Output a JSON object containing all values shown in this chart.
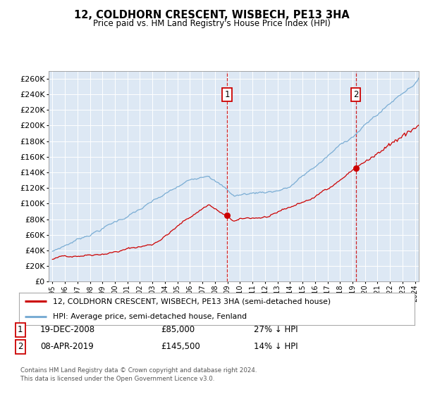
{
  "title": "12, COLDHORN CRESCENT, WISBECH, PE13 3HA",
  "subtitle": "Price paid vs. HM Land Registry's House Price Index (HPI)",
  "property_label": "12, COLDHORN CRESCENT, WISBECH, PE13 3HA (semi-detached house)",
  "hpi_label": "HPI: Average price, semi-detached house, Fenland",
  "property_color": "#cc0000",
  "hpi_color": "#7aadd4",
  "background_color": "#dde8f4",
  "annotation1": {
    "num": "1",
    "date": "19-DEC-2008",
    "price": "£85,000",
    "pct": "27% ↓ HPI",
    "x_year": 2008.97
  },
  "annotation2": {
    "num": "2",
    "date": "08-APR-2019",
    "price": "£145,500",
    "pct": "14% ↓ HPI",
    "x_year": 2019.27
  },
  "sale1_x": 2008.97,
  "sale1_y": 85000,
  "sale2_x": 2019.27,
  "sale2_y": 145500,
  "ylim": [
    0,
    270000
  ],
  "yticks": [
    0,
    20000,
    40000,
    60000,
    80000,
    100000,
    120000,
    140000,
    160000,
    180000,
    200000,
    220000,
    240000,
    260000
  ],
  "xlim_start": 1994.7,
  "xlim_end": 2024.3,
  "footer": "Contains HM Land Registry data © Crown copyright and database right 2024.\nThis data is licensed under the Open Government Licence v3.0.",
  "grid_color": "#ffffff"
}
